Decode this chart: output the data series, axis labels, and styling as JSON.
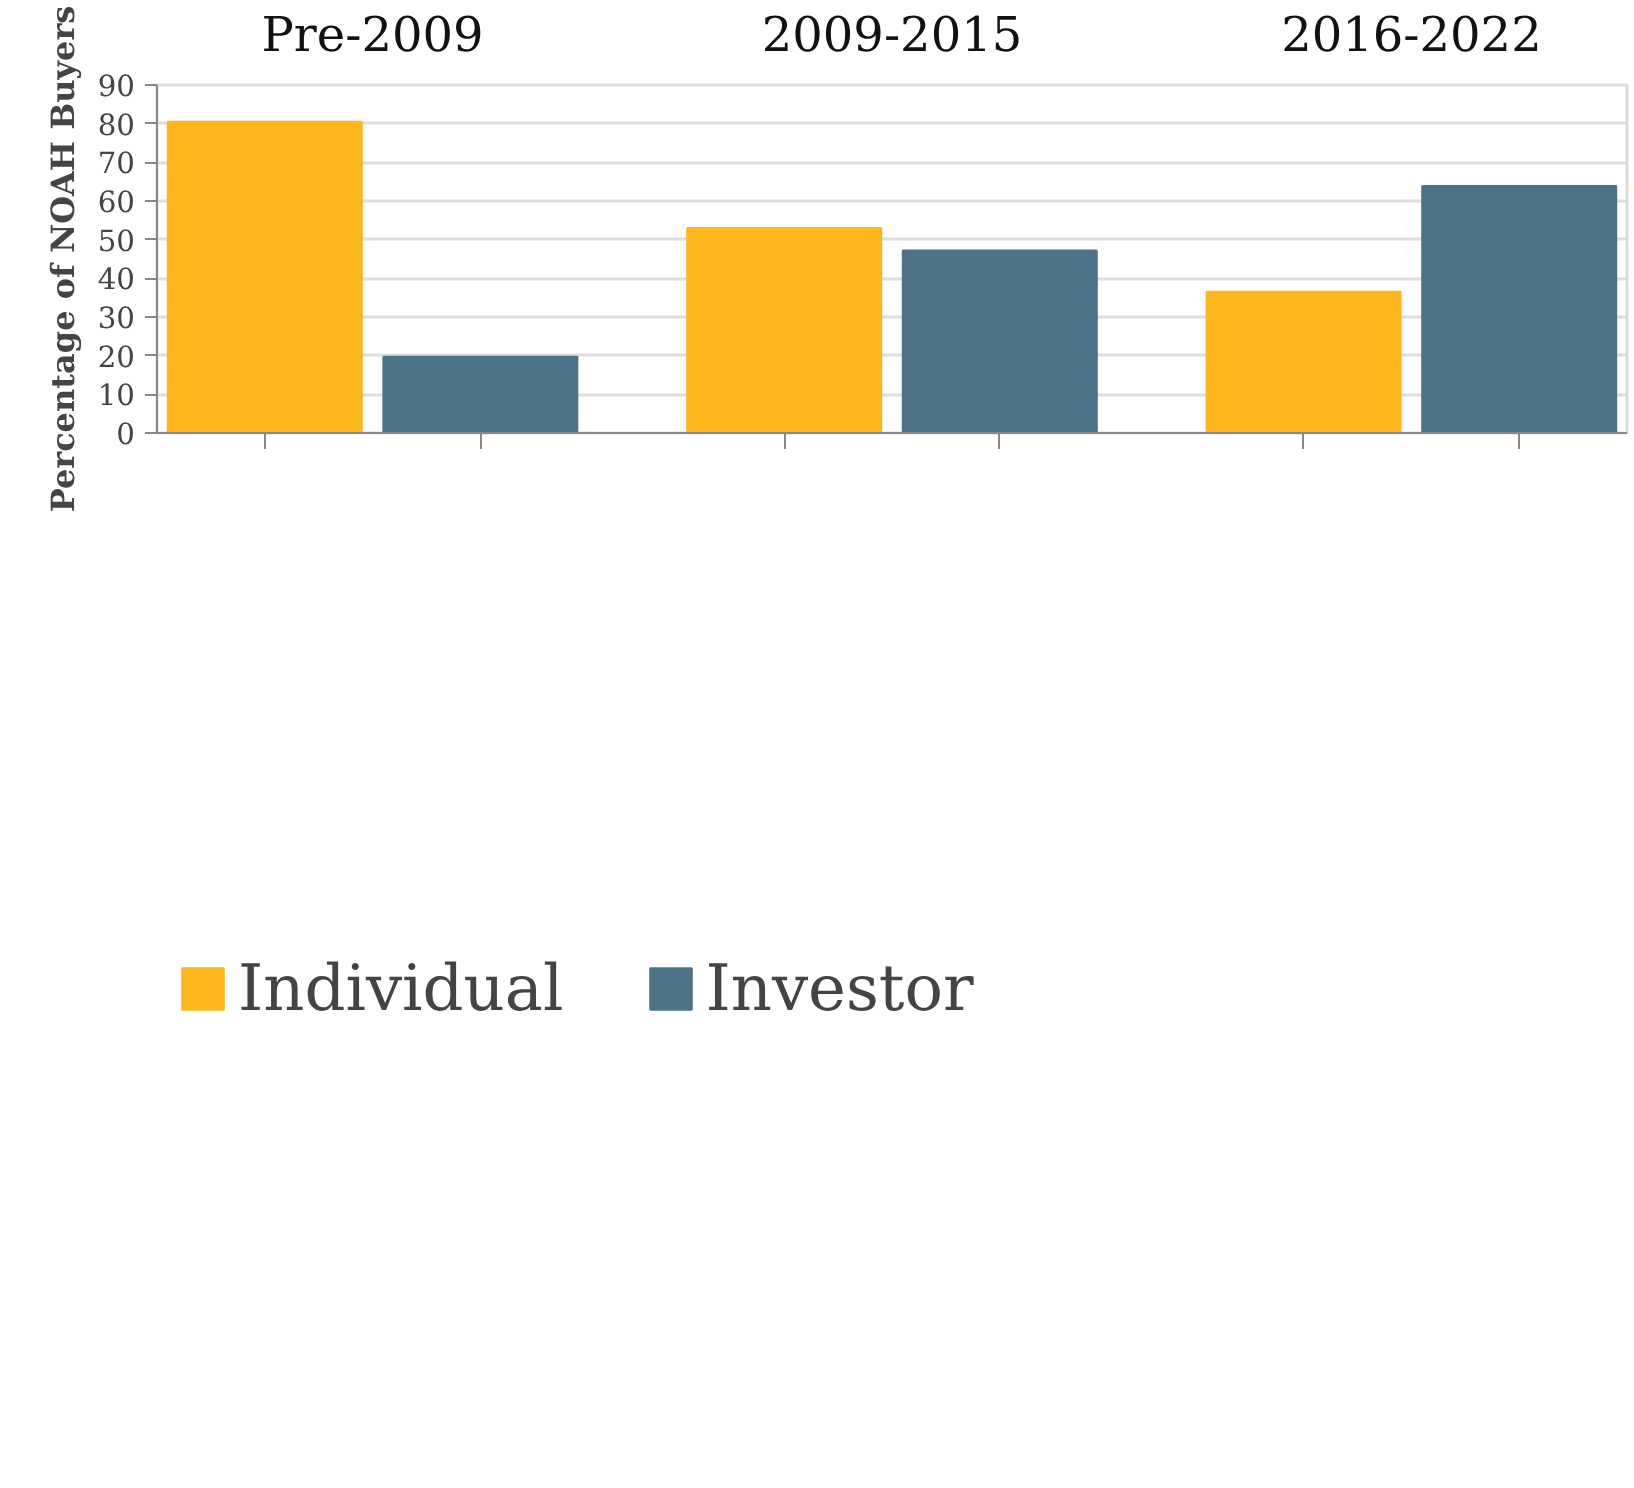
{
  "chart_data": {
    "type": "bar",
    "ylabel": "Percentage of NOAH Buyers",
    "categories": [
      "Pre-2009",
      "2009-2015",
      "2016-2022"
    ],
    "ylim": [
      0,
      90
    ],
    "yticks": [
      0,
      10,
      20,
      30,
      40,
      50,
      60,
      70,
      80,
      90
    ],
    "grid": "y",
    "legend": "bottom",
    "series": [
      {
        "name": "Individual",
        "color": "#fdb71d",
        "values": [
          80.5,
          53.0,
          36.5
        ]
      },
      {
        "name": "Investor",
        "color": "#4d738a",
        "values": [
          19.7,
          47.2,
          63.9
        ]
      }
    ]
  }
}
